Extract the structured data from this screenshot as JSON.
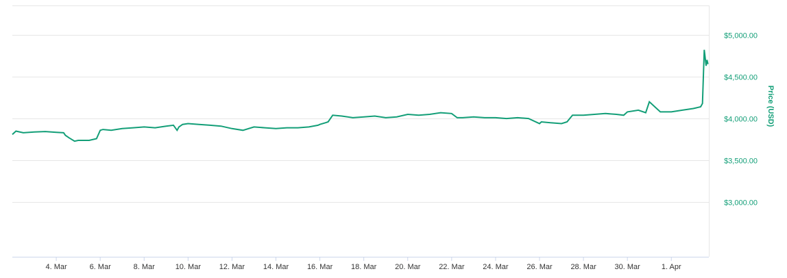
{
  "chart_data": {
    "type": "line",
    "title": "",
    "xlabel": "",
    "ylabel": "Price (USD)",
    "xlim": [
      "2019-03-02",
      "2019-04-02T17:00"
    ],
    "ylim": [
      2350,
      5350
    ],
    "x_ticks": [
      "4. Mar",
      "6. Mar",
      "8. Mar",
      "10. Mar",
      "12. Mar",
      "14. Mar",
      "16. Mar",
      "18. Mar",
      "20. Mar",
      "22. Mar",
      "24. Mar",
      "26. Mar",
      "28. Mar",
      "30. Mar",
      "1. Apr"
    ],
    "y_ticks": [
      {
        "value": 3000,
        "label": "$3,000.00"
      },
      {
        "value": 3500,
        "label": "$3,500.00"
      },
      {
        "value": 4000,
        "label": "$4,000.00"
      },
      {
        "value": 4500,
        "label": "$4,500.00"
      },
      {
        "value": 5000,
        "label": "$5,000.00"
      }
    ],
    "grid": true,
    "legend": "none",
    "colors": {
      "line": "#129e77",
      "axis_text": "#129e77",
      "tick_text": "#333333",
      "grid": "#e6e6e6"
    },
    "series": [
      {
        "x": [
          "2019-03-02T00:00",
          "2019-03-02T04:00",
          "2019-03-02T12:00",
          "2019-03-03T00:00",
          "2019-03-03T12:00",
          "2019-03-04T00:00",
          "2019-03-04T08:00",
          "2019-03-04T10:00",
          "2019-03-04T14:00",
          "2019-03-04T20:00",
          "2019-03-05T00:00",
          "2019-03-05T12:00",
          "2019-03-05T20:00",
          "2019-03-06T00:00",
          "2019-03-06T03:00",
          "2019-03-06T12:00",
          "2019-03-07T00:00",
          "2019-03-07T12:00",
          "2019-03-08T00:00",
          "2019-03-08T12:00",
          "2019-03-09T00:00",
          "2019-03-09T08:00",
          "2019-03-09T12:00",
          "2019-03-09T14:00",
          "2019-03-09T18:00",
          "2019-03-10T00:00",
          "2019-03-10T12:00",
          "2019-03-11T00:00",
          "2019-03-11T12:00",
          "2019-03-12T00:00",
          "2019-03-12T12:00",
          "2019-03-13T00:00",
          "2019-03-13T12:00",
          "2019-03-14T00:00",
          "2019-03-14T12:00",
          "2019-03-15T00:00",
          "2019-03-15T12:00",
          "2019-03-15T22:00",
          "2019-03-16T00:00",
          "2019-03-16T06:00",
          "2019-03-16T09:00",
          "2019-03-16T14:00",
          "2019-03-17T00:00",
          "2019-03-17T12:00",
          "2019-03-18T00:00",
          "2019-03-18T12:00",
          "2019-03-19T00:00",
          "2019-03-19T12:00",
          "2019-03-20T00:00",
          "2019-03-20T12:00",
          "2019-03-21T00:00",
          "2019-03-21T12:00",
          "2019-03-22T00:00",
          "2019-03-22T06:00",
          "2019-03-22T12:00",
          "2019-03-23T00:00",
          "2019-03-23T12:00",
          "2019-03-24T00:00",
          "2019-03-24T12:00",
          "2019-03-25T00:00",
          "2019-03-25T12:00",
          "2019-03-26T00:00",
          "2019-03-26T02:00",
          "2019-03-26T12:00",
          "2019-03-27T00:00",
          "2019-03-27T06:00",
          "2019-03-27T12:00",
          "2019-03-28T00:00",
          "2019-03-28T12:00",
          "2019-03-29T00:00",
          "2019-03-29T12:00",
          "2019-03-29T20:00",
          "2019-03-30T00:00",
          "2019-03-30T12:00",
          "2019-03-30T20:00",
          "2019-03-31T00:00",
          "2019-03-31T12:00",
          "2019-04-01T00:00",
          "2019-04-01T12:00",
          "2019-04-02T00:00",
          "2019-04-02T08:00",
          "2019-04-02T10:00",
          "2019-04-02T12:00",
          "2019-04-02T14:00",
          "2019-04-02T15:00",
          "2019-04-02T16:00"
        ],
        "y": [
          3810,
          3850,
          3830,
          3840,
          3845,
          3835,
          3830,
          3800,
          3770,
          3730,
          3740,
          3740,
          3760,
          3860,
          3870,
          3860,
          3880,
          3890,
          3900,
          3890,
          3910,
          3920,
          3860,
          3900,
          3930,
          3940,
          3930,
          3920,
          3910,
          3880,
          3860,
          3900,
          3890,
          3880,
          3890,
          3890,
          3900,
          3920,
          3930,
          3950,
          3960,
          4040,
          4030,
          4010,
          4020,
          4030,
          4010,
          4020,
          4050,
          4040,
          4050,
          4070,
          4060,
          4010,
          4010,
          4020,
          4010,
          4010,
          4000,
          4010,
          4000,
          3940,
          3960,
          3950,
          3940,
          3960,
          4040,
          4040,
          4050,
          4060,
          4050,
          4040,
          4080,
          4100,
          4070,
          4200,
          4080,
          4080,
          4100,
          4120,
          4140,
          4180,
          4820,
          4630,
          4700,
          4650
        ]
      }
    ]
  }
}
